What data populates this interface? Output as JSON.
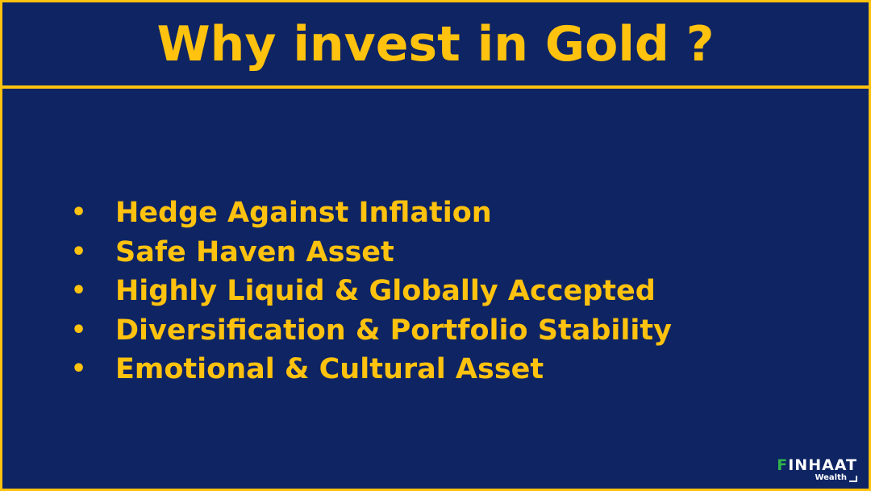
{
  "slide": {
    "title": "Why invest in Gold ?",
    "bullet_symbol": "•",
    "points": [
      "Hedge Against Inflation",
      "Safe Haven Asset",
      "Highly Liquid & Globally Accepted",
      "Diversification & Portfolio Stability",
      "Emotional & Cultural Asset"
    ]
  },
  "logo": {
    "brand_first": "F",
    "brand_rest": "INHAAT",
    "sub": "Wealth"
  },
  "colors": {
    "background": "#0e2463",
    "accent": "#ffc20e",
    "logo_green": "#2fb34a",
    "logo_white": "#ffffff"
  }
}
